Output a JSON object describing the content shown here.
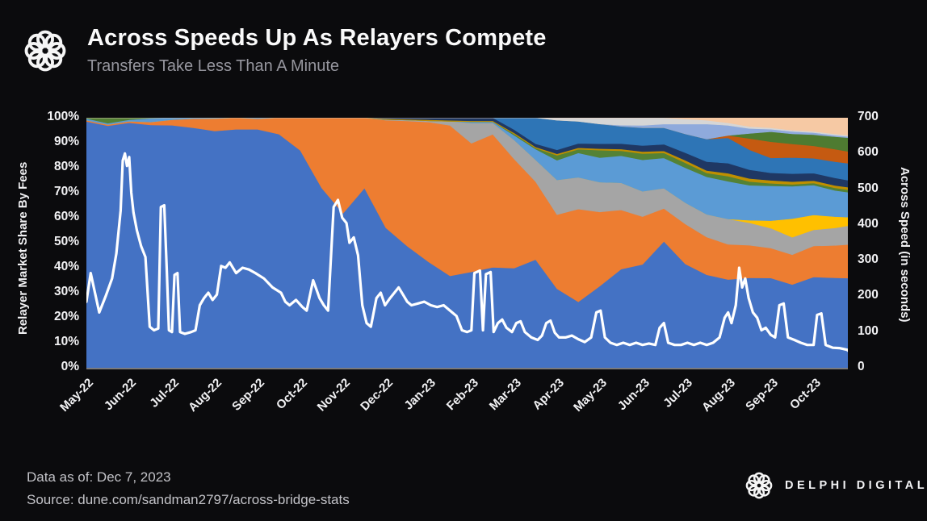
{
  "header": {
    "title": "Across Speeds Up As Relayers Compete",
    "subtitle": "Transfers Take Less Than A Minute"
  },
  "footer": {
    "data_as_of": "Data as of: Dec 7, 2023",
    "source": "Source: dune.com/sandman2797/across-bridge-stats",
    "brand": "DELPHI DIGITAL"
  },
  "icons": {
    "across_logo": "across-knot-icon",
    "delphi_logo": "delphi-knot-icon"
  },
  "theme": {
    "background": "#0b0b0d",
    "title_color": "#fafafa",
    "subtitle_color": "#96969e",
    "axis_text_color": "#f2f2f4",
    "footer_text_color": "#c3c3c8",
    "baseline_color": "#7a7a7c",
    "speed_line_color": "#ffffff"
  },
  "chart_data": {
    "type": "area",
    "stacked_percent": true,
    "title": "Across Speeds Up As Relayers Compete",
    "left_axis": {
      "label": "Relayer Market Share By Fees",
      "range": [
        0,
        100
      ],
      "ticks": [
        "0%",
        "10%",
        "20%",
        "30%",
        "40%",
        "50%",
        "60%",
        "70%",
        "80%",
        "90%",
        "100%"
      ]
    },
    "right_axis": {
      "label": "Across Speed (in seconds)",
      "range": [
        0,
        700
      ],
      "ticks": [
        "0",
        "100",
        "200",
        "300",
        "400",
        "500",
        "600",
        "700"
      ]
    },
    "x_ticks": [
      "May-22",
      "Jun-22",
      "Jul-22",
      "Aug-22",
      "Sep-22",
      "Oct-22",
      "Nov-22",
      "Dec-22",
      "Jan-23",
      "Feb-23",
      "Mar-23",
      "Apr-23",
      "May-23",
      "Jun-23",
      "Jul-23",
      "Aug-23",
      "Sep-23",
      "Oct-23"
    ],
    "x_domain_months": [
      0,
      17.8
    ],
    "sample_interval_months": 0.5,
    "legend": "none (unlabeled relayer market-share series, bottom to top)",
    "series": [
      {
        "name": "relayer-share-1",
        "color": "#4472C4",
        "values": [
          98.5,
          96.8,
          98,
          97,
          97,
          96,
          94.7,
          95,
          95,
          93,
          86.6,
          71.6,
          61.5,
          71.5,
          56,
          48.6,
          42,
          36,
          38,
          40,
          42,
          50,
          32,
          27,
          33,
          40,
          41,
          50,
          41.5,
          37,
          35,
          36,
          36,
          33.5,
          36.5,
          36,
          36
        ]
      },
      {
        "name": "relayer-share-2",
        "color": "#ED7D31",
        "values": [
          0.5,
          0.5,
          0.6,
          1.2,
          2.2,
          3.6,
          5,
          4.6,
          4.2,
          6.5,
          13,
          28,
          38,
          28,
          43,
          50,
          55.5,
          59,
          51,
          53,
          46,
          36,
          30,
          38,
          30,
          24,
          19,
          13,
          16,
          15,
          14,
          13,
          12,
          12,
          12.5,
          13,
          13.5
        ]
      },
      {
        "name": "relayer-share-3",
        "color": "#A5A5A5",
        "values": [
          0,
          0,
          0,
          0,
          0,
          0,
          0,
          0,
          0,
          0,
          0,
          0,
          0,
          0,
          0.3,
          0.4,
          0.5,
          1.6,
          8,
          4.5,
          8,
          10,
          14,
          13,
          12,
          11,
          10,
          8,
          8.5,
          9,
          10,
          9,
          8,
          7,
          6.5,
          7,
          7.5
        ]
      },
      {
        "name": "relayer-share-4",
        "color": "#FFC000",
        "values": [
          0,
          0,
          0,
          0,
          0,
          0,
          0,
          0,
          0,
          0,
          0,
          0,
          0,
          0,
          0,
          0,
          0,
          0,
          0,
          0,
          0,
          0,
          0,
          0,
          0,
          0,
          0,
          0,
          0,
          0,
          0,
          1,
          3,
          7.5,
          6,
          4.5,
          3.5
        ]
      },
      {
        "name": "relayer-share-5",
        "color": "#5B9BD5",
        "values": [
          0.7,
          0.5,
          0.6,
          1.5,
          0.8,
          0.4,
          0.3,
          0,
          0.4,
          0,
          0,
          0,
          0,
          0,
          0,
          0,
          0,
          0,
          0.5,
          0.5,
          2,
          5,
          8,
          10,
          10,
          11,
          12.5,
          12,
          14,
          15,
          15,
          14,
          14,
          13,
          12,
          10.5,
          10
        ]
      },
      {
        "name": "relayer-share-6",
        "color": "#548235",
        "values": [
          0.3,
          2.2,
          0.8,
          0.2,
          0,
          0,
          0,
          0,
          0,
          0,
          0,
          0,
          0,
          0,
          0,
          0,
          0,
          0,
          0,
          0,
          0.5,
          0.5,
          2,
          1.5,
          3,
          2,
          2.5,
          2,
          2,
          1.5,
          2,
          1.5,
          1,
          0.8,
          0.8,
          1,
          1
        ]
      },
      {
        "name": "relayer-share-7",
        "color": "#BF8F00",
        "values": [
          0,
          0,
          0,
          0,
          0,
          0,
          0,
          0,
          0,
          0,
          0,
          0,
          0,
          0,
          0.3,
          0.3,
          0.4,
          0.4,
          0.4,
          0.4,
          0.5,
          0.5,
          0.6,
          0.6,
          0.6,
          0.7,
          0.8,
          0.8,
          1,
          1,
          1.2,
          1.2,
          1.2,
          1.1,
          1,
          1,
          1
        ]
      },
      {
        "name": "relayer-share-8",
        "color": "#1F3864",
        "values": [
          0,
          0,
          0,
          0,
          0,
          0,
          0,
          0,
          0,
          0,
          0,
          0,
          0,
          0,
          0.4,
          0.6,
          0.8,
          1,
          1.2,
          1.2,
          1.4,
          1.5,
          1.6,
          1.8,
          2,
          2.2,
          2.4,
          2.6,
          3,
          3.5,
          4,
          3.5,
          3,
          3.2,
          3,
          3,
          2.8
        ]
      },
      {
        "name": "relayer-share-9",
        "color": "#2E75B6",
        "values": [
          0,
          0,
          0,
          0,
          0,
          0,
          0,
          0,
          0,
          0,
          0,
          0,
          0,
          0,
          0,
          0,
          0,
          0,
          0,
          0,
          5,
          12,
          12,
          9,
          8,
          7,
          7,
          6.5,
          7.5,
          9,
          10,
          8,
          6,
          6.5,
          6,
          6.5,
          6.8
        ]
      },
      {
        "name": "relayer-share-10",
        "color": "#C55A11",
        "values": [
          0,
          0,
          0,
          0,
          0,
          0,
          0,
          0,
          0,
          0,
          0,
          0,
          0,
          0,
          0,
          0,
          0,
          0,
          0,
          0,
          0,
          0,
          0,
          0,
          0,
          0,
          0,
          0,
          0,
          0,
          1,
          4.5,
          6.5,
          5.5,
          5,
          5,
          4.8
        ]
      },
      {
        "name": "relayer-share-11",
        "color": "#4E7B31",
        "values": [
          0,
          0,
          0,
          0,
          0,
          0,
          0,
          0,
          0,
          0,
          0,
          0,
          0,
          0,
          0,
          0,
          0,
          0,
          0,
          0,
          0,
          0,
          0,
          0,
          0,
          0,
          0,
          0,
          0,
          0,
          0,
          2,
          4,
          4,
          4.5,
          5,
          5.5
        ]
      },
      {
        "name": "relayer-share-12",
        "color": "#8FAADC",
        "values": [
          0,
          0,
          0,
          0,
          0,
          0,
          0,
          0,
          0,
          0,
          0,
          0,
          0,
          0,
          0,
          0,
          0,
          0,
          0,
          0,
          0,
          0,
          0,
          0,
          0,
          0.5,
          1,
          1.5,
          4,
          6,
          4,
          2,
          1,
          1,
          0.8,
          0.6,
          0.5
        ]
      },
      {
        "name": "relayer-share-13",
        "color": "#D6D6D6",
        "values": [
          0,
          0,
          0,
          0,
          0,
          0,
          0,
          0,
          0,
          0,
          0,
          0,
          0,
          0,
          0,
          0,
          0,
          0,
          0,
          0,
          0,
          0,
          1,
          1.5,
          2.5,
          3,
          3,
          2.5,
          2,
          1.5,
          1,
          0.8,
          0.6,
          0.5,
          0.5,
          0.5,
          0.5
        ]
      },
      {
        "name": "relayer-share-14",
        "color": "#F6C9A4",
        "values": [
          0,
          0,
          0,
          0,
          0,
          0,
          0,
          0,
          0,
          0,
          0,
          0,
          0,
          0,
          0,
          0,
          0,
          0,
          0,
          0,
          0,
          0,
          0,
          0,
          0,
          0,
          0,
          0,
          0.5,
          1,
          2,
          3.5,
          4,
          5,
          5.5,
          6.5,
          7
        ]
      }
    ],
    "speed_line": {
      "name": "Across Speed (in seconds)",
      "color": "#ffffff",
      "points": [
        [
          0,
          185
        ],
        [
          0.1,
          265
        ],
        [
          0.2,
          210
        ],
        [
          0.3,
          155
        ],
        [
          0.45,
          200
        ],
        [
          0.6,
          250
        ],
        [
          0.7,
          320
        ],
        [
          0.8,
          440
        ],
        [
          0.85,
          580
        ],
        [
          0.9,
          600
        ],
        [
          0.95,
          565
        ],
        [
          1.0,
          590
        ],
        [
          1.05,
          490
        ],
        [
          1.1,
          435
        ],
        [
          1.18,
          385
        ],
        [
          1.28,
          340
        ],
        [
          1.38,
          310
        ],
        [
          1.48,
          115
        ],
        [
          1.58,
          105
        ],
        [
          1.68,
          110
        ],
        [
          1.74,
          450
        ],
        [
          1.82,
          455
        ],
        [
          1.88,
          270
        ],
        [
          1.93,
          105
        ],
        [
          2.0,
          100
        ],
        [
          2.06,
          260
        ],
        [
          2.13,
          265
        ],
        [
          2.19,
          100
        ],
        [
          2.3,
          95
        ],
        [
          2.45,
          100
        ],
        [
          2.55,
          105
        ],
        [
          2.65,
          175
        ],
        [
          2.75,
          195
        ],
        [
          2.85,
          210
        ],
        [
          2.95,
          190
        ],
        [
          3.05,
          205
        ],
        [
          3.15,
          285
        ],
        [
          3.25,
          280
        ],
        [
          3.35,
          295
        ],
        [
          3.5,
          265
        ],
        [
          3.65,
          280
        ],
        [
          3.8,
          275
        ],
        [
          3.95,
          265
        ],
        [
          4.15,
          250
        ],
        [
          4.35,
          225
        ],
        [
          4.55,
          210
        ],
        [
          4.65,
          185
        ],
        [
          4.75,
          175
        ],
        [
          4.9,
          190
        ],
        [
          5.05,
          170
        ],
        [
          5.15,
          160
        ],
        [
          5.3,
          245
        ],
        [
          5.45,
          195
        ],
        [
          5.55,
          175
        ],
        [
          5.65,
          160
        ],
        [
          5.78,
          450
        ],
        [
          5.88,
          470
        ],
        [
          5.98,
          420
        ],
        [
          6.08,
          405
        ],
        [
          6.15,
          350
        ],
        [
          6.25,
          365
        ],
        [
          6.35,
          315
        ],
        [
          6.45,
          175
        ],
        [
          6.55,
          125
        ],
        [
          6.65,
          115
        ],
        [
          6.78,
          195
        ],
        [
          6.88,
          210
        ],
        [
          6.98,
          175
        ],
        [
          7.1,
          195
        ],
        [
          7.2,
          210
        ],
        [
          7.3,
          225
        ],
        [
          7.4,
          205
        ],
        [
          7.5,
          185
        ],
        [
          7.6,
          175
        ],
        [
          7.75,
          180
        ],
        [
          7.9,
          185
        ],
        [
          8.05,
          175
        ],
        [
          8.2,
          170
        ],
        [
          8.35,
          175
        ],
        [
          8.5,
          160
        ],
        [
          8.65,
          145
        ],
        [
          8.78,
          105
        ],
        [
          8.9,
          100
        ],
        [
          9.0,
          105
        ],
        [
          9.07,
          265
        ],
        [
          9.2,
          272
        ],
        [
          9.27,
          105
        ],
        [
          9.34,
          262
        ],
        [
          9.45,
          268
        ],
        [
          9.52,
          100
        ],
        [
          9.62,
          125
        ],
        [
          9.72,
          135
        ],
        [
          9.82,
          112
        ],
        [
          9.95,
          100
        ],
        [
          10.05,
          125
        ],
        [
          10.15,
          130
        ],
        [
          10.25,
          100
        ],
        [
          10.4,
          85
        ],
        [
          10.55,
          78
        ],
        [
          10.65,
          90
        ],
        [
          10.75,
          125
        ],
        [
          10.85,
          132
        ],
        [
          10.95,
          98
        ],
        [
          11.05,
          85
        ],
        [
          11.2,
          85
        ],
        [
          11.35,
          90
        ],
        [
          11.5,
          80
        ],
        [
          11.65,
          72
        ],
        [
          11.8,
          85
        ],
        [
          11.92,
          155
        ],
        [
          12.02,
          160
        ],
        [
          12.12,
          85
        ],
        [
          12.25,
          70
        ],
        [
          12.4,
          64
        ],
        [
          12.55,
          70
        ],
        [
          12.7,
          64
        ],
        [
          12.85,
          70
        ],
        [
          13.0,
          64
        ],
        [
          13.15,
          68
        ],
        [
          13.3,
          64
        ],
        [
          13.4,
          112
        ],
        [
          13.5,
          125
        ],
        [
          13.6,
          70
        ],
        [
          13.75,
          64
        ],
        [
          13.9,
          64
        ],
        [
          14.05,
          70
        ],
        [
          14.2,
          64
        ],
        [
          14.35,
          70
        ],
        [
          14.5,
          64
        ],
        [
          14.65,
          70
        ],
        [
          14.8,
          85
        ],
        [
          14.92,
          140
        ],
        [
          15.0,
          155
        ],
        [
          15.08,
          125
        ],
        [
          15.18,
          175
        ],
        [
          15.26,
          280
        ],
        [
          15.33,
          225
        ],
        [
          15.4,
          250
        ],
        [
          15.48,
          195
        ],
        [
          15.58,
          155
        ],
        [
          15.68,
          140
        ],
        [
          15.78,
          105
        ],
        [
          15.88,
          112
        ],
        [
          16.0,
          92
        ],
        [
          16.1,
          85
        ],
        [
          16.2,
          175
        ],
        [
          16.3,
          180
        ],
        [
          16.4,
          85
        ],
        [
          16.55,
          78
        ],
        [
          16.7,
          70
        ],
        [
          16.85,
          64
        ],
        [
          17.0,
          64
        ],
        [
          17.08,
          148
        ],
        [
          17.18,
          152
        ],
        [
          17.28,
          64
        ],
        [
          17.45,
          56
        ],
        [
          17.6,
          55
        ],
        [
          17.8,
          50
        ],
        [
          18.0,
          48
        ]
      ]
    }
  }
}
